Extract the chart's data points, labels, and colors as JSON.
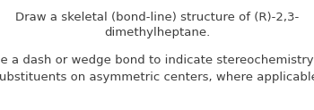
{
  "line1": "Draw a skeletal (bond-line) structure of (R)-2,3-",
  "line2": "dimethylheptane.",
  "line3": "Use a dash or wedge bond to indicate stereochemistry of",
  "line4": "substituents on asymmetric centers, where applicable.",
  "background_color": "#ffffff",
  "text_color": "#3d3d3d",
  "font_size": 9.5
}
